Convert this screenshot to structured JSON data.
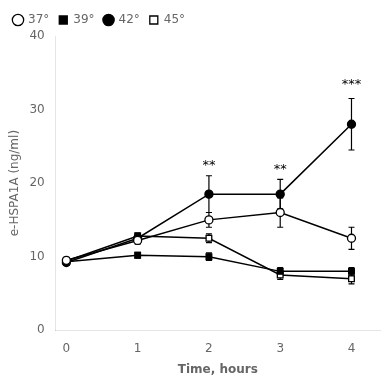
{
  "chart_data": {
    "type": "line",
    "x_label": "Time, hours",
    "y_label": "e-HSPA1A (ng/ml)",
    "x": [
      0,
      1,
      2,
      3,
      4
    ],
    "series": [
      {
        "name": "37°",
        "color": "#000000",
        "marker": "open_circle",
        "line_style": "solid",
        "values": [
          9.5,
          12.2,
          15.0,
          16.0,
          12.5
        ],
        "errors": [
          0.4,
          0.5,
          1.0,
          2.0,
          1.5
        ]
      },
      {
        "name": "39°",
        "color": "#000000",
        "marker": "square",
        "line_style": "solid",
        "values": [
          9.3,
          10.2,
          10.0,
          8.0,
          8.0
        ],
        "errors": [
          0.3,
          0.4,
          0.5,
          0.5,
          0.5
        ]
      },
      {
        "name": "42°",
        "color": "#000000",
        "marker": "circle",
        "line_style": "solid",
        "values": [
          9.2,
          12.5,
          18.5,
          18.5,
          28.0
        ],
        "errors": [
          0.3,
          0.5,
          2.5,
          2.0,
          3.5
        ]
      },
      {
        "name": "45°",
        "color": "#000000",
        "marker": "open_square",
        "line_style": "solid",
        "values": [
          9.4,
          12.8,
          12.5,
          7.5,
          7.0
        ],
        "errors": [
          0.35,
          0.45,
          0.6,
          0.6,
          0.7
        ]
      }
    ],
    "annotations": [
      {
        "x": 2,
        "y": 21.5,
        "text": "**"
      },
      {
        "x": 3,
        "y": 21.0,
        "text": "**"
      },
      {
        "x": 4,
        "y": 32.5,
        "text": "***"
      }
    ],
    "xlim": [
      -0.15,
      4.4
    ],
    "xticks": [
      0,
      1,
      2,
      3,
      4
    ],
    "ylim": [
      0,
      40
    ],
    "yticks": [
      0,
      10,
      20,
      30,
      40
    ],
    "grid": false,
    "legend": "upper left"
  }
}
